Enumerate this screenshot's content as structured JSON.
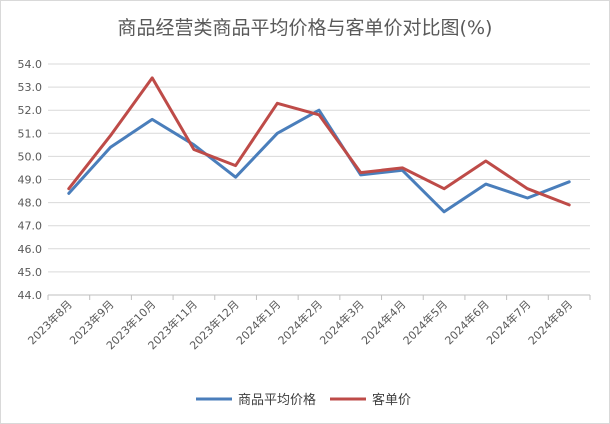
{
  "chart_data": {
    "type": "line",
    "title": "商品经营类商品平均价格与客单价对比图(%)",
    "categories": [
      "2023年8月",
      "2023年9月",
      "2023年10月",
      "2023年11月",
      "2023年12月",
      "2024年1月",
      "2024年2月",
      "2024年3月",
      "2024年4月",
      "2024年5月",
      "2024年6月",
      "2024年7月",
      "2024年8月"
    ],
    "series": [
      {
        "name": "商品平均价格",
        "color": "#4a7ebb",
        "values": [
          48.4,
          50.4,
          51.6,
          50.5,
          49.1,
          51.0,
          52.0,
          49.2,
          49.4,
          47.6,
          48.8,
          48.2,
          48.9
        ]
      },
      {
        "name": "客单价",
        "color": "#be4b48",
        "values": [
          48.6,
          50.9,
          53.4,
          50.3,
          49.6,
          52.3,
          51.8,
          49.3,
          49.5,
          48.6,
          49.8,
          48.6,
          47.9
        ]
      }
    ],
    "ylim": [
      44.0,
      54.0
    ],
    "yticks": [
      "44.0",
      "45.0",
      "46.0",
      "47.0",
      "48.0",
      "49.0",
      "50.0",
      "51.0",
      "52.0",
      "53.0",
      "54.0"
    ],
    "grid": true,
    "legend": "bottom"
  }
}
